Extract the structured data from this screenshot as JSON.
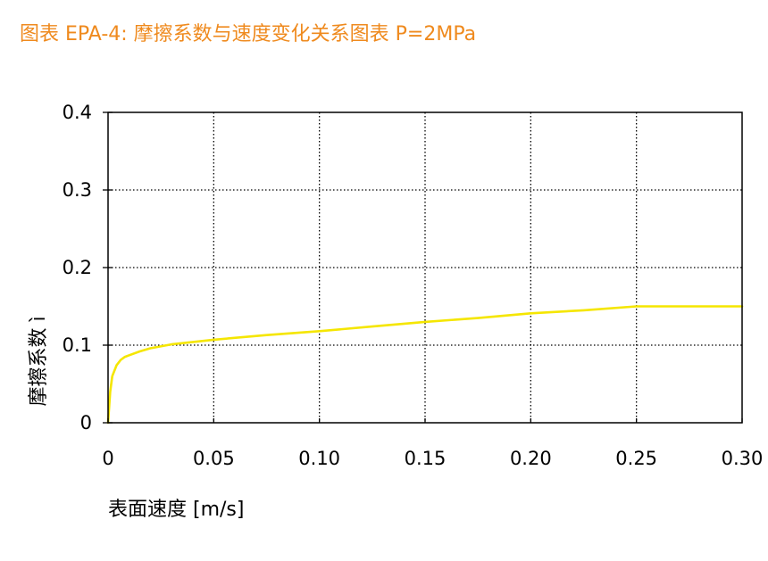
{
  "title": "图表 EPA-4: 摩擦系数与速度变化关系图表 P=2MPa",
  "colors": {
    "title": "#ef8a1e",
    "series": "#f5e600",
    "grid": "#000000",
    "axis": "#000000"
  },
  "chart_data": {
    "type": "line",
    "title": "图表 EPA-4: 摩擦系数与速度变化关系图表 P=2MPa",
    "xlabel": "表面速度 [m/s]",
    "ylabel": "摩擦系数 ì",
    "xlim": [
      0,
      0.3
    ],
    "ylim": [
      0,
      0.4
    ],
    "x_ticks": [
      0,
      0.05,
      0.1,
      0.15,
      0.2,
      0.25,
      0.3
    ],
    "x_tick_labels": [
      "0",
      "0.05",
      "0.10",
      "0.15",
      "0.20",
      "0.25",
      "0.30"
    ],
    "y_ticks": [
      0,
      0.1,
      0.2,
      0.3,
      0.4
    ],
    "y_tick_labels": [
      "0",
      "0.1",
      "0.2",
      "0.3",
      "0.4"
    ],
    "grid": true,
    "grid_style": "dotted",
    "legend": "none",
    "series": [
      {
        "x": [
          0,
          0.001,
          0.002,
          0.004,
          0.006,
          0.008,
          0.01,
          0.015,
          0.02,
          0.03,
          0.05,
          0.075,
          0.1,
          0.125,
          0.15,
          0.175,
          0.2,
          0.225,
          0.25,
          0.275,
          0.3
        ],
        "y": [
          0,
          0.04,
          0.06,
          0.074,
          0.081,
          0.085,
          0.087,
          0.092,
          0.096,
          0.101,
          0.107,
          0.113,
          0.118,
          0.124,
          0.13,
          0.135,
          0.141,
          0.145,
          0.15,
          0.15,
          0.15
        ]
      }
    ]
  }
}
